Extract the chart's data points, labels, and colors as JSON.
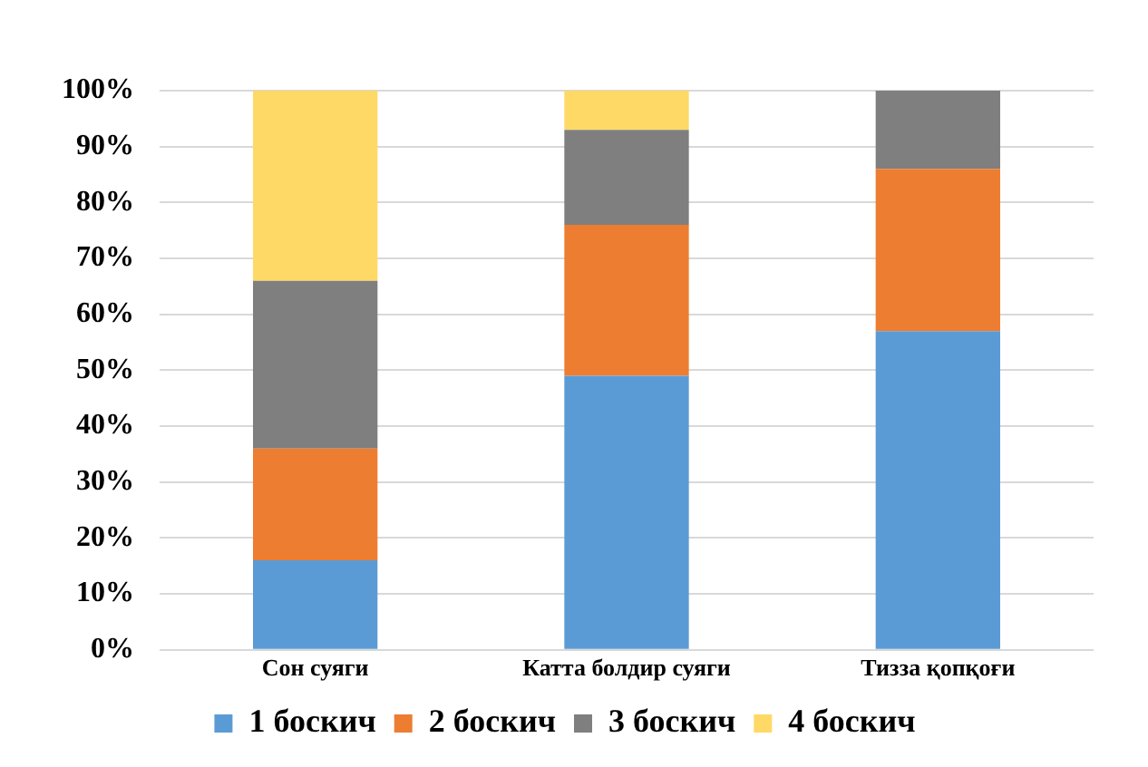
{
  "chart_data": {
    "type": "bar",
    "stacked": true,
    "categories": [
      "Сон суяги",
      "Катта болдир суяги",
      "Тизза қопқоғи"
    ],
    "series": [
      {
        "name": "1 боскич",
        "color": "#5b9bd5",
        "values": [
          16,
          49,
          57
        ]
      },
      {
        "name": "2 боскич",
        "color": "#ed7d31",
        "values": [
          20,
          27,
          29
        ]
      },
      {
        "name": "3 боскич",
        "color": "#7f7f7f",
        "values": [
          30,
          17,
          14
        ]
      },
      {
        "name": "4 боскич",
        "color": "#ffd966",
        "values": [
          34,
          7,
          0
        ]
      }
    ],
    "ylim": [
      0,
      100
    ],
    "yticks": [
      {
        "value": 0,
        "label": "0%"
      },
      {
        "value": 10,
        "label": "10%"
      },
      {
        "value": 20,
        "label": "20%"
      },
      {
        "value": 30,
        "label": "30%"
      },
      {
        "value": 40,
        "label": "40%"
      },
      {
        "value": 50,
        "label": "50%"
      },
      {
        "value": 60,
        "label": "60%"
      },
      {
        "value": 70,
        "label": "70%"
      },
      {
        "value": 80,
        "label": "80%"
      },
      {
        "value": 90,
        "label": "90%"
      },
      {
        "value": 100,
        "label": "100%"
      }
    ],
    "grid": "y",
    "legend": "bottom"
  }
}
